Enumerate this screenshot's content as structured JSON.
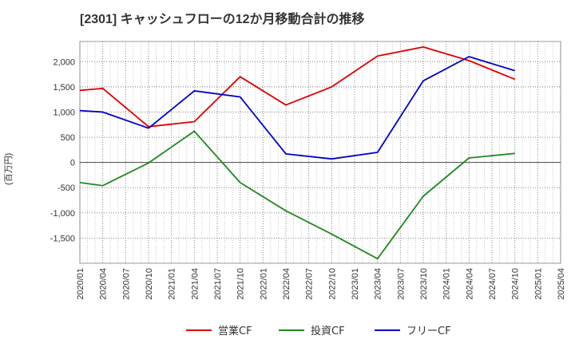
{
  "chart_data": {
    "type": "line",
    "title": "[2301]  キャッシュフローの12か月移動合計の推移",
    "ylabel": "(百万円)",
    "xlabel": "",
    "ylim": [
      -2000,
      2400
    ],
    "yticks": [
      2000,
      1500,
      1000,
      500,
      0,
      -500,
      -1000,
      -1500
    ],
    "ytick_labels": [
      "2,000",
      "1,500",
      "1,000",
      "500",
      "0",
      "-500",
      "-1,000",
      "-1,500"
    ],
    "x_categories": [
      "2020/01",
      "2020/04",
      "2020/07",
      "2020/10",
      "2021/01",
      "2021/04",
      "2021/07",
      "2021/10",
      "2022/01",
      "2022/04",
      "2022/07",
      "2022/10",
      "2023/01",
      "2023/04",
      "2023/07",
      "2023/10",
      "2024/01",
      "2024/04",
      "2024/07",
      "2024/10",
      "2025/01",
      "2025/04"
    ],
    "grid": true,
    "legend_position": "bottom",
    "series": [
      {
        "name": "営業CF",
        "color": "#dd0000",
        "points": [
          [
            "2020/01",
            1430
          ],
          [
            "2020/04",
            1470
          ],
          [
            "2020/10",
            710
          ],
          [
            "2021/04",
            810
          ],
          [
            "2021/10",
            1700
          ],
          [
            "2022/04",
            1140
          ],
          [
            "2022/10",
            1500
          ],
          [
            "2023/04",
            2110
          ],
          [
            "2023/10",
            2290
          ],
          [
            "2024/04",
            2020
          ],
          [
            "2024/10",
            1650
          ]
        ]
      },
      {
        "name": "投資CF",
        "color": "#228822",
        "points": [
          [
            "2020/01",
            -400
          ],
          [
            "2020/04",
            -460
          ],
          [
            "2020/10",
            -10
          ],
          [
            "2021/04",
            620
          ],
          [
            "2021/10",
            -400
          ],
          [
            "2022/04",
            -960
          ],
          [
            "2022/10",
            -1420
          ],
          [
            "2023/04",
            -1910
          ],
          [
            "2023/10",
            -670
          ],
          [
            "2024/04",
            90
          ],
          [
            "2024/10",
            180
          ]
        ]
      },
      {
        "name": "フリーCF",
        "color": "#0000cc",
        "points": [
          [
            "2020/01",
            1030
          ],
          [
            "2020/04",
            1000
          ],
          [
            "2020/10",
            680
          ],
          [
            "2021/04",
            1420
          ],
          [
            "2021/10",
            1300
          ],
          [
            "2022/04",
            170
          ],
          [
            "2022/10",
            70
          ],
          [
            "2023/04",
            200
          ],
          [
            "2023/10",
            1620
          ],
          [
            "2024/04",
            2100
          ],
          [
            "2024/10",
            1820
          ]
        ]
      }
    ]
  }
}
